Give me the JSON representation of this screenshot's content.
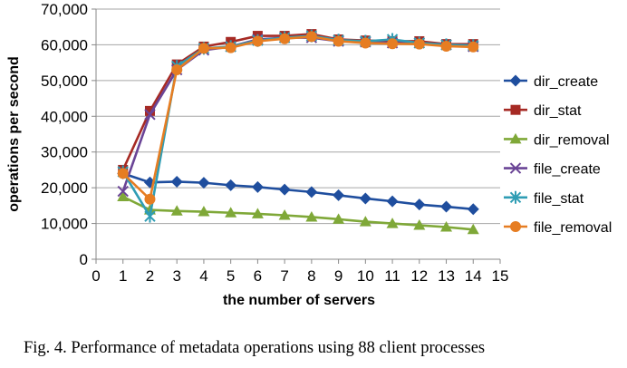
{
  "caption": "Fig. 4.  Performance of metadata operations using 88 client processes",
  "chart_data": {
    "type": "line",
    "title": "",
    "xlabel": "the number of servers",
    "ylabel": "operations per second",
    "xlim": [
      0,
      15
    ],
    "ylim": [
      0,
      70000
    ],
    "x_ticks": [
      "0",
      "1",
      "2",
      "3",
      "4",
      "5",
      "6",
      "7",
      "8",
      "9",
      "10",
      "11",
      "12",
      "13",
      "14",
      "15"
    ],
    "y_ticks": [
      "0",
      "10,000",
      "20,000",
      "30,000",
      "40,000",
      "50,000",
      "60,000",
      "70,000"
    ],
    "grid": "horizontal",
    "legend_position": "right",
    "x": [
      1,
      2,
      3,
      4,
      5,
      6,
      7,
      8,
      9,
      10,
      11,
      12,
      13,
      14
    ],
    "series": [
      {
        "name": "dir_create",
        "color": "#1f4e9e",
        "marker": "diamond",
        "values": [
          24000,
          21500,
          21700,
          21400,
          20700,
          20200,
          19500,
          18800,
          17900,
          17000,
          16200,
          15300,
          14700,
          14000
        ]
      },
      {
        "name": "dir_stat",
        "color": "#a62a24",
        "marker": "square",
        "values": [
          25000,
          41500,
          54500,
          59500,
          60800,
          62500,
          62500,
          63000,
          61500,
          61200,
          61000,
          61000,
          60200,
          60200
        ]
      },
      {
        "name": "dir_removal",
        "color": "#7fa838",
        "marker": "triangle",
        "values": [
          17500,
          13800,
          13500,
          13300,
          13000,
          12700,
          12300,
          11800,
          11200,
          10500,
          10000,
          9500,
          9000,
          8300
        ]
      },
      {
        "name": "file_create",
        "color": "#6a4496",
        "marker": "x",
        "values": [
          19000,
          40500,
          53000,
          58500,
          59500,
          61500,
          62000,
          62000,
          61000,
          60800,
          60500,
          60500,
          60000,
          59500
        ]
      },
      {
        "name": "file_stat",
        "color": "#2f9db4",
        "marker": "asterisk",
        "values": [
          24500,
          12000,
          54000,
          59000,
          59500,
          61200,
          62000,
          62500,
          61300,
          61000,
          61500,
          60500,
          60000,
          59800
        ]
      },
      {
        "name": "file_removal",
        "color": "#e67d22",
        "marker": "circle",
        "values": [
          24000,
          16800,
          53000,
          59000,
          59200,
          61000,
          61700,
          62300,
          61000,
          60500,
          60300,
          60200,
          59600,
          59400
        ]
      }
    ]
  }
}
